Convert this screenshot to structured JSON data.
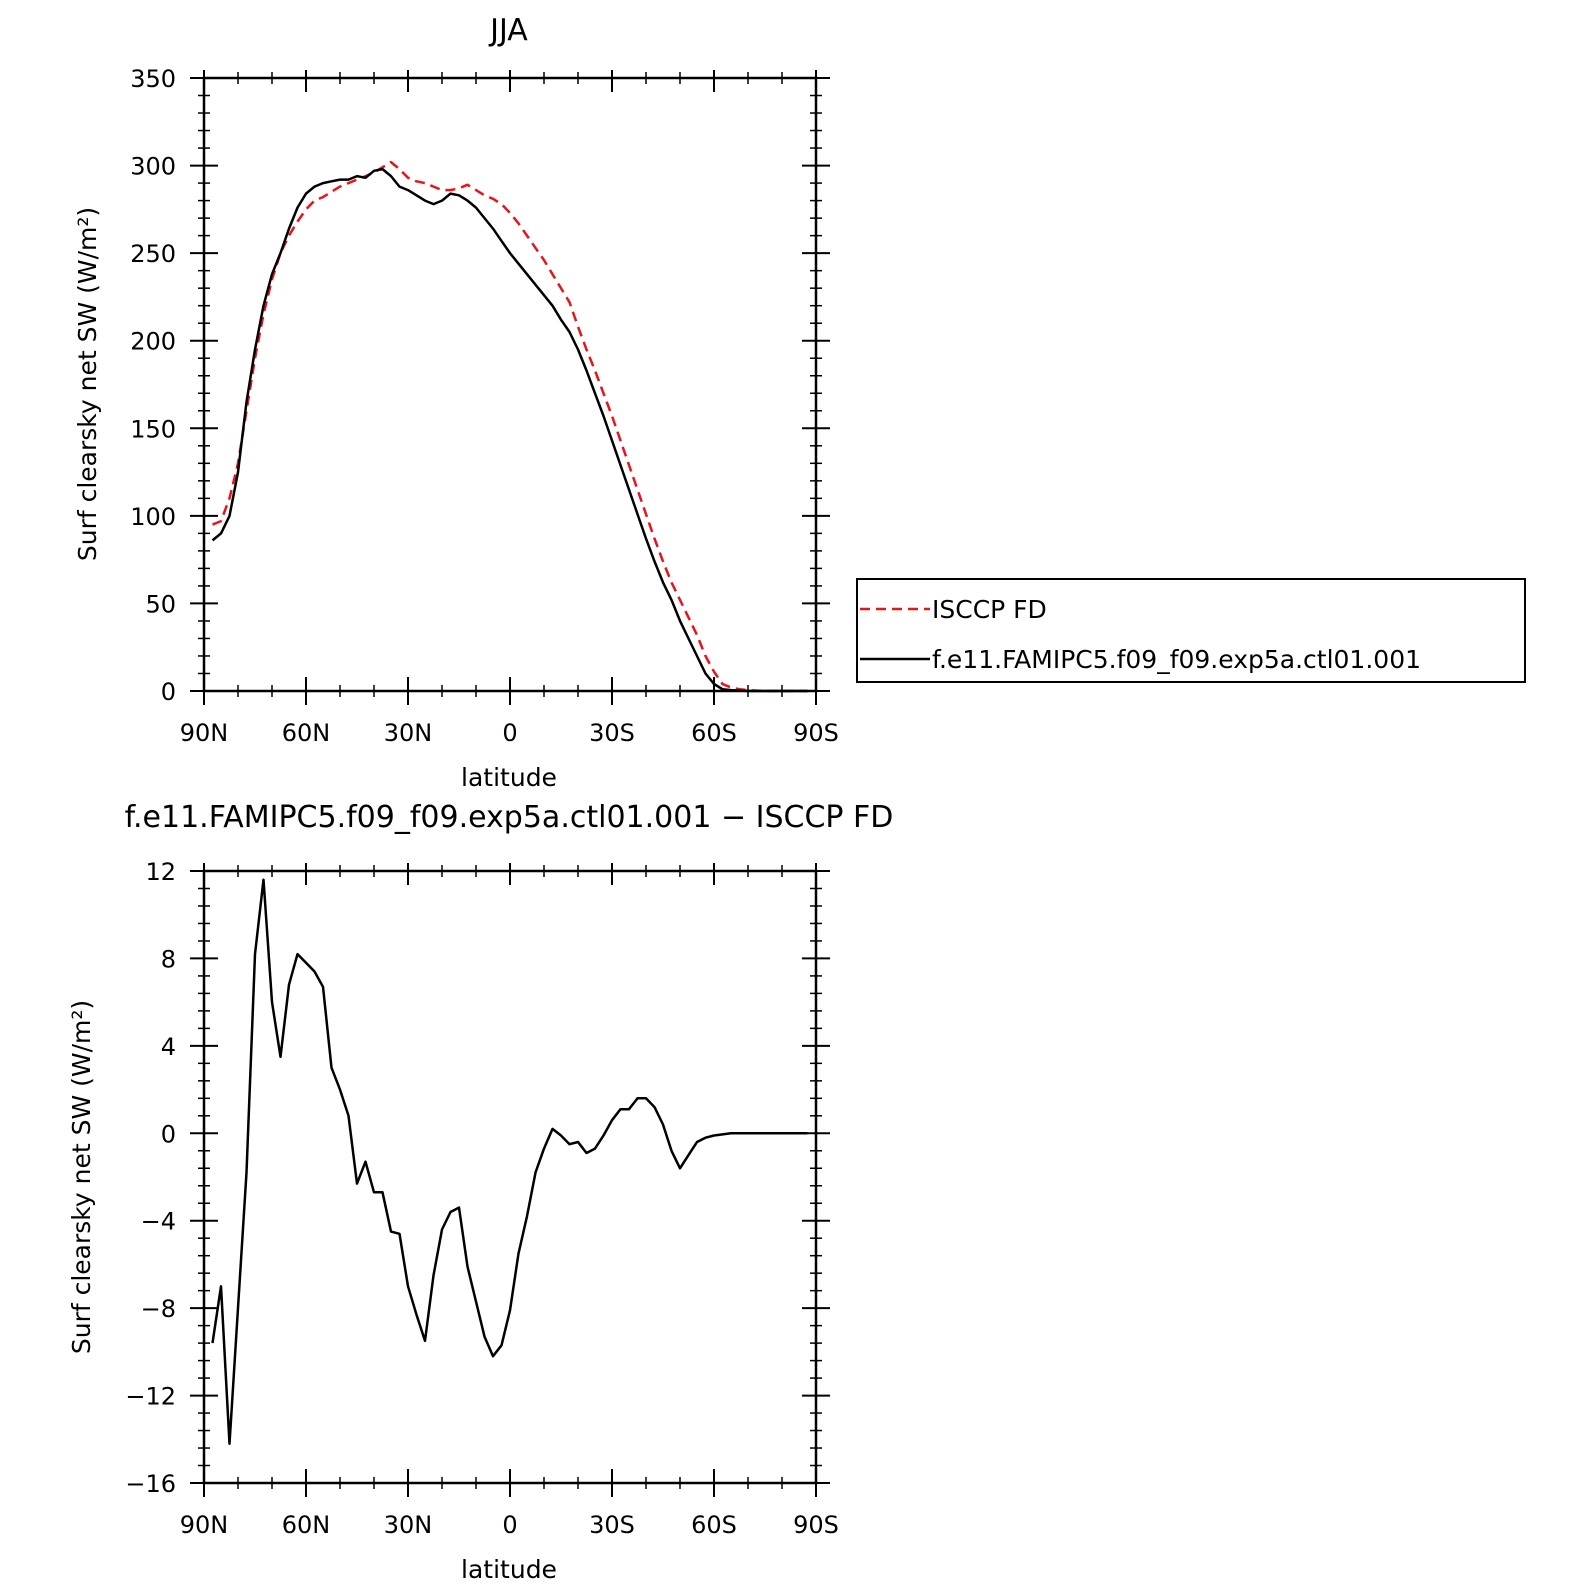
{
  "chart_data": [
    {
      "type": "line",
      "title": "JJA",
      "xlabel": "latitude",
      "ylabel": "Surf clearsky net SW (W/m²)",
      "xlim": [
        -90,
        90
      ],
      "ylim": [
        0,
        350
      ],
      "x_ticks": [
        -90,
        -60,
        -30,
        0,
        30,
        60,
        90
      ],
      "x_tick_labels": [
        "90N",
        "60N",
        "30N",
        "0",
        "30S",
        "60S",
        "90S"
      ],
      "y_ticks": [
        0,
        50,
        100,
        150,
        200,
        250,
        300,
        350
      ],
      "y_tick_labels": [
        "0",
        "50",
        "100",
        "150",
        "200",
        "250",
        "300",
        "350"
      ],
      "legend_position": "right",
      "series": [
        {
          "name": "ISCCP FD",
          "color": "#e8141b",
          "style": "dashed",
          "x": [
            -87.5,
            -85,
            -82.5,
            -80,
            -77.5,
            -75,
            -72.5,
            -70,
            -67.5,
            -65,
            -62.5,
            -60,
            -57.5,
            -55,
            -52.5,
            -50,
            -47.5,
            -45,
            -42.5,
            -40,
            -37.5,
            -35,
            -32.5,
            -30,
            -27.5,
            -25,
            -22.5,
            -20,
            -17.5,
            -15,
            -12.5,
            -10,
            -7.5,
            -5,
            -2.5,
            0,
            2.5,
            5,
            7.5,
            10,
            12.5,
            15,
            17.5,
            20,
            22.5,
            25,
            27.5,
            30,
            32.5,
            35,
            37.5,
            40,
            42.5,
            45,
            47.5,
            50,
            52.5,
            55,
            57.5,
            60,
            62.5,
            65,
            67.5,
            70,
            72.5,
            75,
            77.5,
            80,
            82.5,
            85,
            87.5
          ],
          "values": [
            95,
            97,
            110,
            130,
            160,
            190,
            215,
            235,
            250,
            260,
            268,
            275,
            280,
            282,
            285,
            288,
            290,
            292,
            294,
            296,
            299,
            302,
            298,
            293,
            291,
            290,
            288,
            286,
            286,
            287,
            289,
            286,
            283,
            281,
            278,
            273,
            267,
            260,
            253,
            246,
            238,
            230,
            222,
            208,
            195,
            183,
            170,
            157,
            143,
            129,
            115,
            101,
            87,
            74,
            62,
            52,
            42,
            32,
            20,
            11,
            4,
            2,
            1,
            0.5,
            0.2,
            0,
            0,
            0,
            0,
            0,
            0
          ]
        },
        {
          "name": "f.e11.FAMIPC5.f09_f09.exp5a.ctl01.001",
          "color": "#000000",
          "style": "solid",
          "x": [
            -87.5,
            -85,
            -82.5,
            -80,
            -77.5,
            -75,
            -72.5,
            -70,
            -67.5,
            -65,
            -62.5,
            -60,
            -57.5,
            -55,
            -52.5,
            -50,
            -47.5,
            -45,
            -42.5,
            -40,
            -37.5,
            -35,
            -32.5,
            -30,
            -27.5,
            -25,
            -22.5,
            -20,
            -17.5,
            -15,
            -12.5,
            -10,
            -7.5,
            -5,
            -2.5,
            0,
            2.5,
            5,
            7.5,
            10,
            12.5,
            15,
            17.5,
            20,
            22.5,
            25,
            27.5,
            30,
            32.5,
            35,
            37.5,
            40,
            42.5,
            45,
            47.5,
            50,
            52.5,
            55,
            57.5,
            60,
            62.5,
            65,
            67.5,
            70,
            72.5,
            75,
            77.5,
            80,
            82.5,
            85,
            87.5
          ],
          "values": [
            86,
            90,
            100,
            125,
            165,
            195,
            220,
            238,
            250,
            264,
            276,
            284,
            288,
            290,
            291,
            292,
            292,
            294,
            293,
            297,
            298,
            294,
            288,
            286,
            283,
            280,
            278,
            280,
            284,
            283,
            280,
            276,
            270,
            264,
            257,
            250,
            244,
            238,
            232,
            226,
            220,
            212,
            205,
            195,
            183,
            170,
            157,
            143,
            129,
            115,
            101,
            87,
            74,
            62,
            52,
            40,
            30,
            20,
            10,
            4,
            1,
            0.5,
            0.2,
            0,
            0,
            0,
            0,
            0,
            0,
            0,
            0
          ]
        }
      ]
    },
    {
      "type": "line",
      "title": "f.e11.FAMIPC5.f09_f09.exp5a.ctl01.001 − ISCCP FD",
      "xlabel": "latitude",
      "ylabel": "Surf clearsky net SW (W/m²)",
      "xlim": [
        -90,
        90
      ],
      "ylim": [
        -16,
        12
      ],
      "x_ticks": [
        -90,
        -60,
        -30,
        0,
        30,
        60,
        90
      ],
      "x_tick_labels": [
        "90N",
        "60N",
        "30N",
        "0",
        "30S",
        "60S",
        "90S"
      ],
      "y_ticks": [
        -16,
        -12,
        -8,
        -4,
        0,
        4,
        8,
        12
      ],
      "y_tick_labels": [
        "−16",
        "−12",
        "−8",
        "−4",
        "0",
        "4",
        "8",
        "12"
      ],
      "series": [
        {
          "color": "#000000",
          "style": "solid",
          "x": [
            -87.5,
            -85,
            -82.5,
            -80,
            -77.5,
            -75,
            -72.5,
            -70,
            -67.5,
            -65,
            -62.5,
            -60,
            -57.5,
            -55,
            -52.5,
            -50,
            -47.5,
            -45,
            -42.5,
            -40,
            -37.5,
            -35,
            -32.5,
            -30,
            -27.5,
            -25,
            -22.5,
            -20,
            -17.5,
            -15,
            -12.5,
            -10,
            -7.5,
            -5,
            -2.5,
            0,
            2.5,
            5,
            7.5,
            10,
            12.5,
            15,
            17.5,
            20,
            22.5,
            25,
            27.5,
            30,
            32.5,
            35,
            37.5,
            40,
            42.5,
            45,
            47.5,
            50,
            52.5,
            55,
            57.5,
            60,
            62.5,
            65,
            67.5,
            70,
            72.5,
            75,
            77.5,
            80,
            82.5,
            85,
            87.5
          ],
          "values": [
            -9.6,
            -7,
            -14.2,
            -8,
            -1.8,
            8.2,
            11.6,
            6,
            3.5,
            6.8,
            8.2,
            7.8,
            7.4,
            6.7,
            3,
            2,
            0.8,
            -2.3,
            -1.3,
            -2.7,
            -2.7,
            -4.5,
            -4.6,
            -7,
            -8.3,
            -9.5,
            -6.5,
            -4.4,
            -3.6,
            -3.4,
            -6.1,
            -7.7,
            -9.3,
            -10.2,
            -9.7,
            -8.1,
            -5.5,
            -3.8,
            -1.8,
            -0.7,
            0.2,
            -0.1,
            -0.5,
            -0.4,
            -0.9,
            -0.7,
            -0.1,
            0.6,
            1.1,
            1.1,
            1.6,
            1.6,
            1.2,
            0.4,
            -0.8,
            -1.6,
            -1,
            -0.4,
            -0.2,
            -0.1,
            -0.05,
            0,
            0,
            0,
            0,
            0,
            0,
            0,
            0,
            0,
            0
          ]
        }
      ]
    }
  ]
}
